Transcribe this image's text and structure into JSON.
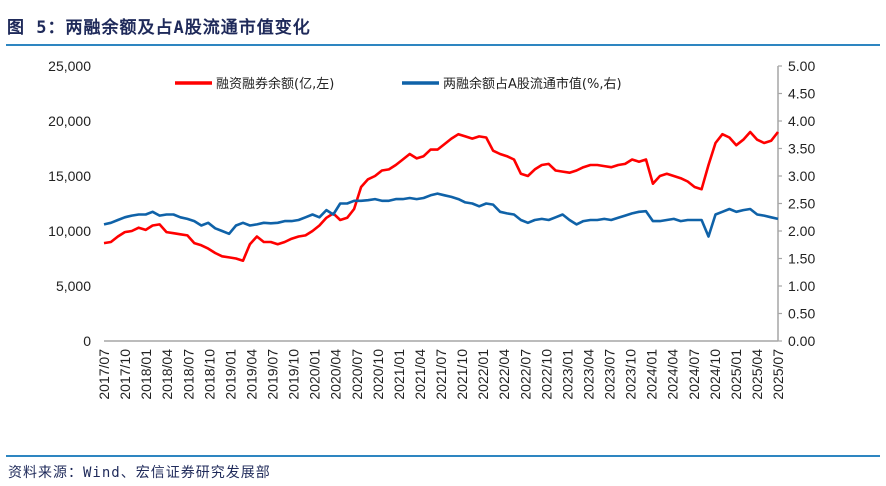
{
  "header": {
    "title": "图 5：两融余额及占A股流通市值变化"
  },
  "footer": {
    "source": "资料来源：Wind、宏信证券研究发展部"
  },
  "colors": {
    "series_margin": "#ff0000",
    "series_ratio": "#0f62a8",
    "axis": "#a6a6a6",
    "rule": "#2e86c1"
  },
  "chart_data": {
    "type": "line",
    "title": "两融余额及占A股流通市值变化",
    "xlabel": "",
    "ylabel_left": "融资融券余额(亿)",
    "ylabel_right": "两融余额占A股流通市值(%)",
    "ylim_left": [
      0,
      25000
    ],
    "ylim_right": [
      0,
      5.0
    ],
    "grid": false,
    "legend_position": "top",
    "left_ticks": [
      "25,000",
      "20,000",
      "15,000",
      "10,000",
      "5,000",
      "0"
    ],
    "right_ticks": [
      "5.00",
      "4.50",
      "4.00",
      "3.50",
      "3.00",
      "2.50",
      "2.00",
      "1.50",
      "1.00",
      "0.50",
      "0.00"
    ],
    "x_tick_labels": [
      "2017/07",
      "2017/10",
      "2018/01",
      "2018/04",
      "2018/07",
      "2018/10",
      "2019/01",
      "2019/04",
      "2019/07",
      "2019/10",
      "2020/01",
      "2020/04",
      "2020/07",
      "2020/10",
      "2021/01",
      "2021/04",
      "2021/07",
      "2021/10",
      "2022/01",
      "2022/04",
      "2022/07",
      "2022/10",
      "2023/01",
      "2023/04",
      "2023/07",
      "2023/10",
      "2024/01",
      "2024/04",
      "2024/07",
      "2024/10",
      "2025/01",
      "2025/04",
      "2025/07"
    ],
    "x_start": "2017/07",
    "x_end": "2025/07",
    "x_frequency": "monthly",
    "series": [
      {
        "name": "融资融券余额(亿,左)",
        "axis": "left",
        "color": "#ff0000",
        "values": [
          8900,
          9000,
          9500,
          9900,
          10000,
          10300,
          10100,
          10500,
          10600,
          9900,
          9800,
          9700,
          9600,
          8900,
          8700,
          8400,
          8000,
          7700,
          7600,
          7500,
          7300,
          8800,
          9500,
          9000,
          9000,
          8800,
          9000,
          9300,
          9500,
          9600,
          10000,
          10500,
          11200,
          11600,
          11000,
          11200,
          12000,
          14000,
          14700,
          15000,
          15500,
          15600,
          16000,
          16500,
          17000,
          16600,
          16800,
          17400,
          17400,
          17900,
          18400,
          18800,
          18600,
          18400,
          18600,
          18500,
          17300,
          17000,
          16800,
          16500,
          15200,
          15000,
          15600,
          16000,
          16100,
          15500,
          15400,
          15300,
          15500,
          15800,
          16000,
          16000,
          15900,
          15800,
          16000,
          16100,
          16500,
          16300,
          16500,
          14300,
          15000,
          15200,
          15000,
          14800,
          14500,
          14000,
          13800,
          16000,
          18000,
          18800,
          18500,
          17800,
          18300,
          19000,
          18300,
          18000,
          18200,
          19000
        ]
      },
      {
        "name": "两融余额占A股流通市值(%,右)",
        "axis": "right",
        "color": "#0f62a8",
        "values": [
          2.12,
          2.15,
          2.2,
          2.25,
          2.28,
          2.3,
          2.3,
          2.35,
          2.28,
          2.3,
          2.3,
          2.25,
          2.22,
          2.18,
          2.1,
          2.15,
          2.05,
          2.0,
          1.95,
          2.1,
          2.15,
          2.1,
          2.12,
          2.15,
          2.14,
          2.15,
          2.18,
          2.18,
          2.2,
          2.25,
          2.3,
          2.25,
          2.38,
          2.3,
          2.5,
          2.5,
          2.55,
          2.55,
          2.56,
          2.58,
          2.55,
          2.55,
          2.58,
          2.58,
          2.6,
          2.58,
          2.6,
          2.65,
          2.68,
          2.65,
          2.62,
          2.58,
          2.52,
          2.5,
          2.45,
          2.5,
          2.48,
          2.35,
          2.32,
          2.3,
          2.2,
          2.15,
          2.2,
          2.22,
          2.2,
          2.25,
          2.3,
          2.2,
          2.12,
          2.18,
          2.2,
          2.2,
          2.22,
          2.2,
          2.24,
          2.28,
          2.32,
          2.35,
          2.36,
          2.18,
          2.18,
          2.2,
          2.22,
          2.18,
          2.2,
          2.2,
          2.2,
          1.9,
          2.3,
          2.35,
          2.4,
          2.35,
          2.38,
          2.4,
          2.3,
          2.28,
          2.25,
          2.22
        ]
      }
    ]
  },
  "legend": {
    "items": [
      {
        "label": "融资融券余额(亿,左)"
      },
      {
        "label": "两融余额占A股流通市值(%,右)"
      }
    ]
  }
}
